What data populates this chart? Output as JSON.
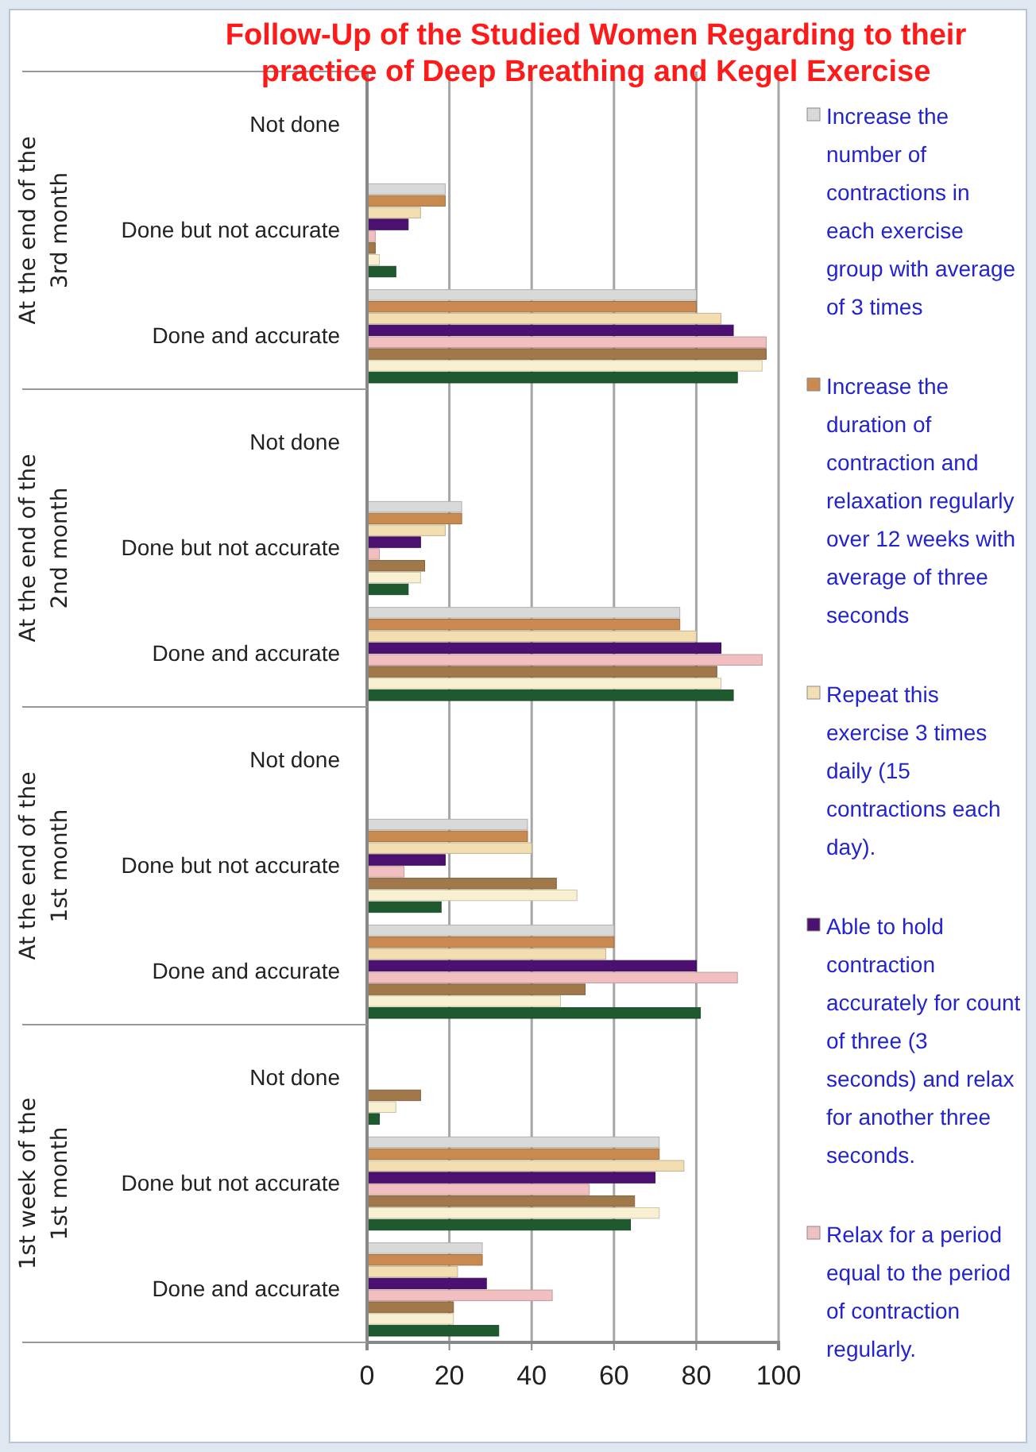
{
  "chart_data": {
    "type": "bar",
    "orientation": "horizontal",
    "title": "Follow-Up of the Studied Women Regarding to their practice of Deep Breathing and Kegel Exercise",
    "categories": [
      "Not done",
      "Done but not accurate",
      "Done and accurate",
      "Not done",
      "Done but not accurate",
      "Done and accurate",
      "Not done",
      "Done but not accurate",
      "Done and accurate",
      "Not done",
      "Done but not accurate",
      "Done and accurate"
    ],
    "annotations": [
      "At the end of the 3rd month",
      "At the end of the 2nd month",
      "At the end of the 1st month",
      "1st week of the 1st month"
    ],
    "series": [
      {
        "name": "Increase the number of contractions in each exercise group with average of 3 times",
        "color": "#d9d9d9",
        "values": [
          0,
          19,
          80,
          0,
          23,
          76,
          0,
          39,
          60,
          0,
          71,
          28
        ]
      },
      {
        "name": "Increase the duration of contraction and relaxation regularly over 12 weeks with average of three seconds",
        "color": "#c98a52",
        "values": [
          0,
          19,
          80,
          0,
          23,
          76,
          0,
          39,
          60,
          0,
          71,
          28
        ]
      },
      {
        "name": "Repeat this exercise 3 times daily (15 contractions each day).",
        "color": "#f2deb0",
        "values": [
          0,
          13,
          86,
          0,
          19,
          80,
          0,
          40,
          58,
          0,
          77,
          22
        ]
      },
      {
        "name": "Able to hold contraction accurately for count of three (3 seconds) and relax for another three seconds.",
        "color": "#4b1070",
        "values": [
          0,
          10,
          89,
          0,
          13,
          86,
          0,
          19,
          80,
          0,
          70,
          29
        ]
      },
      {
        "name": "Relax for a period equal to the period of contraction regularly.",
        "color": "#f2bfc0",
        "values": [
          0,
          2,
          97,
          0,
          3,
          96,
          0,
          9,
          90,
          0,
          54,
          45
        ]
      },
      {
        "color": "#a0784a",
        "values": [
          0,
          2,
          97,
          0,
          14,
          85,
          0,
          46,
          53,
          13,
          65,
          21
        ]
      },
      {
        "color": "#f8f0d0",
        "values": [
          0,
          3,
          96,
          0,
          13,
          86,
          0,
          51,
          47,
          7,
          71,
          21
        ]
      },
      {
        "color": "#1f5a2e",
        "values": [
          0,
          7,
          90,
          0,
          10,
          89,
          0,
          18,
          81,
          3,
          64,
          32
        ]
      }
    ],
    "xlim": [
      0,
      100
    ],
    "xticks": [
      0,
      20,
      40,
      60,
      80,
      100
    ],
    "grid": "x",
    "legend": "right"
  }
}
